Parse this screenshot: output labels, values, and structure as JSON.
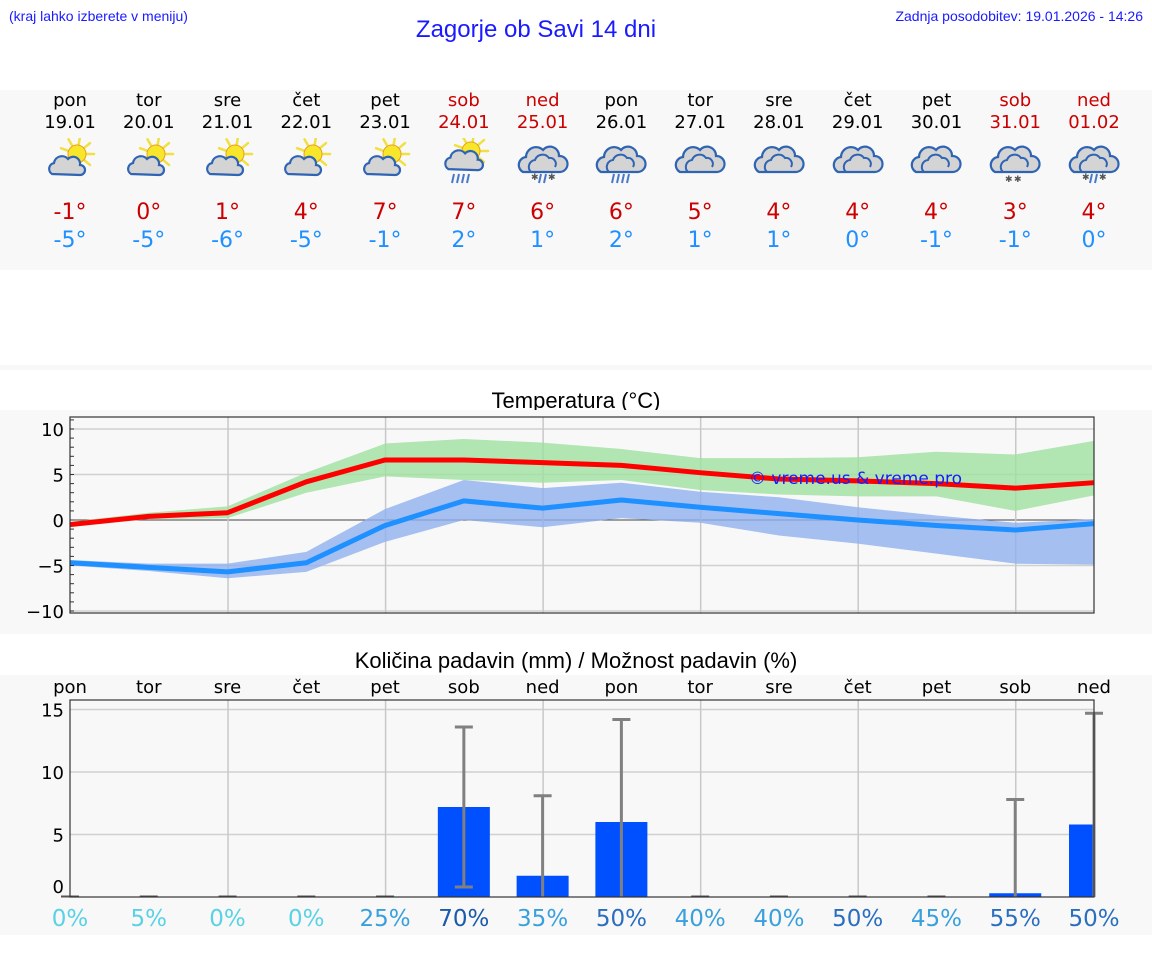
{
  "header": {
    "hint": "(kraj lahko izberete v meniju)",
    "title": "Zagorje ob Savi 14 dni",
    "updated": "Zadnja posodobitev: 19.01.2026 - 14:26"
  },
  "colors": {
    "link_blue": "#1a1aff",
    "max_temp": "#cc0000",
    "min_temp": "#1e90ff",
    "max_line": "#ff0000",
    "min_line": "#1e90ff",
    "max_band": "#a8e6a8",
    "min_band": "#a6c2f2",
    "precip_bar": "#0050ff",
    "error_bar": "#808080"
  },
  "days": [
    {
      "name": "pon",
      "date": "19.01",
      "weekend": false,
      "icon": "partly-sunny-icon",
      "tmax": "-1°",
      "tmin": "-5°"
    },
    {
      "name": "tor",
      "date": "20.01",
      "weekend": false,
      "icon": "partly-sunny-icon",
      "tmax": "0°",
      "tmin": "-5°"
    },
    {
      "name": "sre",
      "date": "21.01",
      "weekend": false,
      "icon": "partly-sunny-icon",
      "tmax": "1°",
      "tmin": "-6°"
    },
    {
      "name": "čet",
      "date": "22.01",
      "weekend": false,
      "icon": "partly-sunny-icon",
      "tmax": "4°",
      "tmin": "-5°"
    },
    {
      "name": "pet",
      "date": "23.01",
      "weekend": false,
      "icon": "partly-sunny-icon",
      "tmax": "7°",
      "tmin": "-1°"
    },
    {
      "name": "sob",
      "date": "24.01",
      "weekend": true,
      "icon": "sun-cloud-rain-icon",
      "tmax": "7°",
      "tmin": "2°"
    },
    {
      "name": "ned",
      "date": "25.01",
      "weekend": true,
      "icon": "cloud-sleet-icon",
      "tmax": "6°",
      "tmin": "1°"
    },
    {
      "name": "pon",
      "date": "26.01",
      "weekend": false,
      "icon": "cloud-rain-icon",
      "tmax": "6°",
      "tmin": "2°"
    },
    {
      "name": "tor",
      "date": "27.01",
      "weekend": false,
      "icon": "cloudy-icon",
      "tmax": "5°",
      "tmin": "1°"
    },
    {
      "name": "sre",
      "date": "28.01",
      "weekend": false,
      "icon": "cloudy-icon",
      "tmax": "4°",
      "tmin": "1°"
    },
    {
      "name": "čet",
      "date": "29.01",
      "weekend": false,
      "icon": "cloudy-icon",
      "tmax": "4°",
      "tmin": "0°"
    },
    {
      "name": "pet",
      "date": "30.01",
      "weekend": false,
      "icon": "cloudy-icon",
      "tmax": "4°",
      "tmin": "-1°"
    },
    {
      "name": "sob",
      "date": "31.01",
      "weekend": true,
      "icon": "cloud-snow-icon",
      "tmax": "3°",
      "tmin": "-1°"
    },
    {
      "name": "ned",
      "date": "01.02",
      "weekend": true,
      "icon": "cloud-sleet-icon",
      "tmax": "4°",
      "tmin": "0°"
    }
  ],
  "temp_chart": {
    "title": "Temperatura (°C)",
    "watermark": "© vreme.us & vreme.pro",
    "yticks": [
      "10",
      "5",
      "0",
      "−5",
      "−10"
    ]
  },
  "precip_chart": {
    "title": "Količina padavin (mm) / Možnost padavin (%)",
    "day_labels": [
      "pon",
      "tor",
      "sre",
      "čet",
      "pet",
      "sob",
      "ned",
      "pon",
      "tor",
      "sre",
      "čet",
      "pet",
      "sob",
      "ned"
    ],
    "yticks": [
      "15",
      "10",
      "5",
      "0"
    ],
    "probabilities": [
      "0%",
      "5%",
      "0%",
      "0%",
      "25%",
      "70%",
      "35%",
      "50%",
      "40%",
      "40%",
      "50%",
      "45%",
      "55%",
      "50%"
    ]
  },
  "chart_data": [
    {
      "type": "line",
      "title": "Temperatura (°C)",
      "xlabel": "",
      "ylabel": "°C",
      "ylim": [
        -10.5,
        11
      ],
      "grid": true,
      "categories": [
        "19.01",
        "20.01",
        "21.01",
        "22.01",
        "23.01",
        "24.01",
        "25.01",
        "26.01",
        "27.01",
        "28.01",
        "29.01",
        "30.01",
        "31.01",
        "01.02"
      ],
      "series": [
        {
          "name": "Max temperature",
          "color": "#ff0000",
          "values": [
            -0.5,
            0.4,
            0.8,
            4.2,
            6.6,
            6.6,
            6.3,
            6.0,
            5.2,
            4.5,
            4.3,
            4.0,
            3.5,
            4.1
          ]
        },
        {
          "name": "Max band upper",
          "color": "#a8e6a8",
          "values": [
            -0.2,
            0.8,
            1.5,
            5.2,
            8.4,
            8.9,
            8.5,
            7.8,
            6.8,
            6.8,
            6.9,
            7.5,
            7.2,
            8.7
          ]
        },
        {
          "name": "Max band lower",
          "color": "#a8e6a8",
          "values": [
            -0.8,
            0.1,
            0.2,
            3.0,
            4.8,
            4.4,
            4.1,
            4.4,
            3.3,
            2.8,
            2.6,
            2.6,
            1.0,
            2.7
          ]
        },
        {
          "name": "Min temperature",
          "color": "#1e90ff",
          "values": [
            -4.7,
            -5.2,
            -5.7,
            -4.7,
            -0.6,
            2.1,
            1.3,
            2.2,
            1.4,
            0.7,
            0.0,
            -0.6,
            -1.1,
            -0.4
          ]
        },
        {
          "name": "Min band upper",
          "color": "#a6c2f2",
          "values": [
            -4.4,
            -4.8,
            -4.8,
            -3.5,
            1.2,
            4.4,
            3.5,
            4.1,
            3.1,
            2.5,
            1.4,
            0.5,
            -0.3,
            0.1
          ]
        },
        {
          "name": "Min band lower",
          "color": "#a6c2f2",
          "values": [
            -5.0,
            -5.6,
            -6.4,
            -5.7,
            -2.4,
            0.0,
            -0.8,
            0.2,
            -0.3,
            -1.7,
            -2.6,
            -3.7,
            -4.8,
            -4.9
          ]
        }
      ],
      "annotations": [
        "© vreme.us & vreme.pro"
      ]
    },
    {
      "type": "bar",
      "title": "Količina padavin (mm) / Možnost padavin (%)",
      "xlabel": "",
      "ylabel": "mm",
      "ylim": [
        0,
        15.8
      ],
      "grid": true,
      "categories": [
        "pon",
        "tor",
        "sre",
        "čet",
        "pet",
        "sob",
        "ned",
        "pon",
        "tor",
        "sre",
        "čet",
        "pet",
        "sob",
        "ned"
      ],
      "series": [
        {
          "name": "Precipitation (mm)",
          "color": "#0050ff",
          "values": [
            0,
            0,
            0,
            0,
            0,
            7.2,
            1.7,
            6.0,
            0,
            0,
            0,
            0,
            0.3,
            5.8
          ]
        },
        {
          "name": "Error low (mm)",
          "values": [
            0,
            0,
            0,
            0,
            0,
            0.8,
            0,
            0,
            0,
            0,
            0,
            0,
            0,
            0
          ]
        },
        {
          "name": "Error high (mm)",
          "values": [
            0,
            0,
            0,
            0,
            0,
            13.6,
            8.1,
            14.2,
            0,
            0,
            0,
            0,
            7.8,
            14.7
          ]
        },
        {
          "name": "Probability (%)",
          "values": [
            0,
            5,
            0,
            0,
            25,
            70,
            35,
            50,
            40,
            40,
            50,
            45,
            55,
            50
          ]
        }
      ]
    }
  ]
}
